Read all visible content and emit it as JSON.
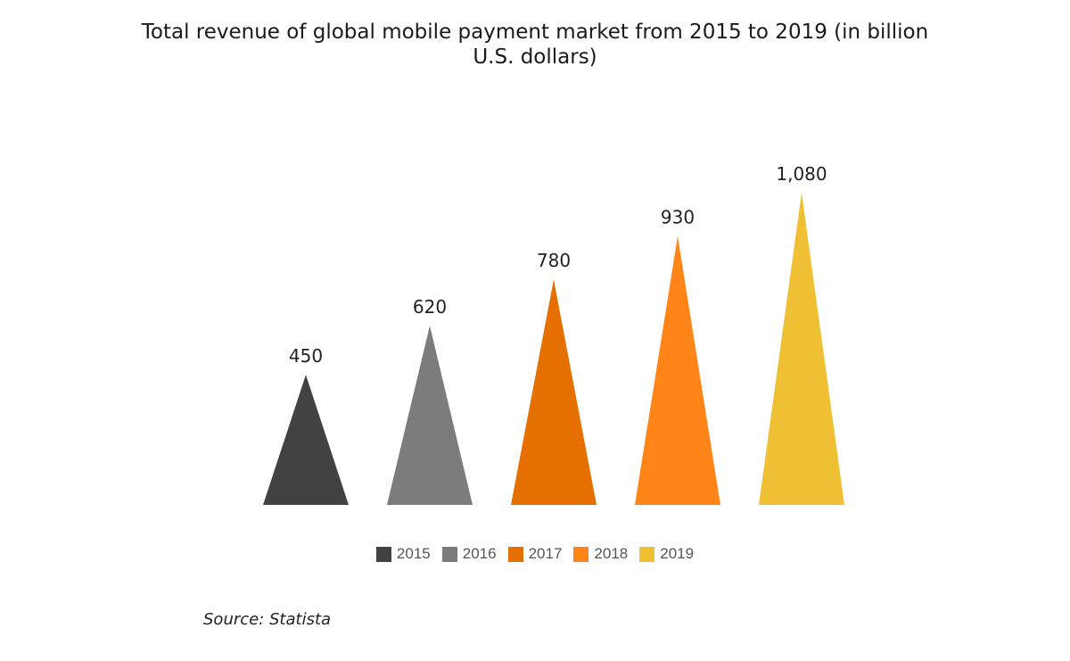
{
  "chart_data": {
    "type": "bar",
    "title": "Total revenue of global mobile payment market from 2015 to 2019 (in billion U.S. dollars)",
    "categories": [
      "2015",
      "2016",
      "2017",
      "2018",
      "2019"
    ],
    "values": [
      450,
      620,
      780,
      930,
      1080
    ],
    "value_labels": [
      "450",
      "620",
      "780",
      "930",
      "1,080"
    ],
    "colors": [
      "#424242",
      "#7c7c7c",
      "#e57000",
      "#ff8519",
      "#f0c034"
    ],
    "bar_shape": "triangle",
    "ylim": [
      0,
      1080
    ],
    "grid": false,
    "legend_position": "bottom"
  },
  "source": "Source: Statista"
}
